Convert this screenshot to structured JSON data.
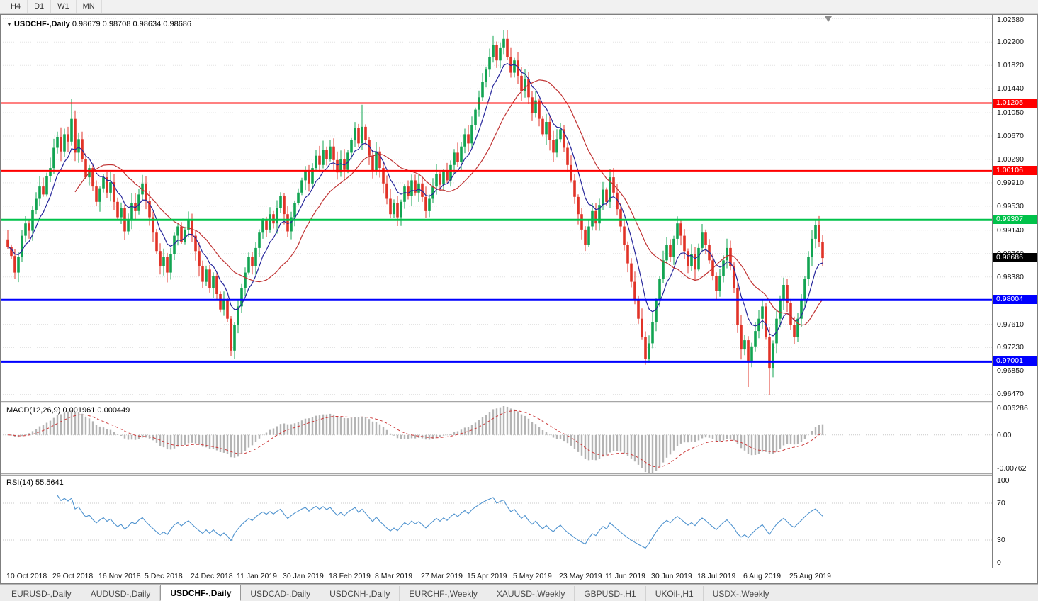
{
  "toolbar": {
    "timeframes": [
      "H4",
      "D1",
      "W1",
      "MN"
    ]
  },
  "chart": {
    "symbol_label": "USDCHF-,Daily",
    "ohlc_label": "0.98679 0.98708 0.98634 0.98686"
  },
  "colors": {
    "up": "#12a452",
    "down": "#e13328",
    "grid": "#e4e4e4",
    "ma_fast": "#26269b",
    "ma_slow": "#c03333",
    "macd_hist": "#b4b4b4",
    "macd_signal": "#cc3a3a",
    "rsi_line": "#4f93cf",
    "level_dotted": "#c9c9c9"
  },
  "chart_data": {
    "type": "candlestick",
    "symbol": "USDCHF-",
    "period": "Daily",
    "last_ohlc": {
      "open": 0.98679,
      "high": 0.98708,
      "low": 0.98634,
      "close": 0.98686
    },
    "y_axis": {
      "min": 0.9636,
      "max": 1.0264,
      "ticks": [
        "1.02580",
        "1.02200",
        "1.01820",
        "1.01440",
        "1.01050",
        "1.00670",
        "1.00290",
        "0.99910",
        "0.99530",
        "0.99140",
        "0.98760",
        "0.98380",
        "0.97610",
        "0.97230",
        "0.96850",
        "0.96470"
      ]
    },
    "x_labels": [
      "10 Oct 2018",
      "29 Oct 2018",
      "16 Nov 2018",
      "5 Dec 2018",
      "24 Dec 2018",
      "11 Jan 2019",
      "30 Jan 2019",
      "18 Feb 2019",
      "8 Mar 2019",
      "27 Mar 2019",
      "15 Apr 2019",
      "5 May 2019",
      "23 May 2019",
      "11 Jun 2019",
      "30 Jun 2019",
      "18 Jul 2019",
      "6 Aug 2019",
      "25 Aug 2019"
    ],
    "x_label_step": 13,
    "closes": [
      0.9887,
      0.9872,
      0.9845,
      0.987,
      0.9905,
      0.9925,
      0.9913,
      0.9946,
      0.9965,
      0.9985,
      0.9972,
      1.0002,
      1.0015,
      1.0048,
      1.0065,
      1.0042,
      1.007,
      1.0058,
      1.0095,
      1.004,
      1.0062,
      1.003,
      1.0,
      1.0015,
      0.9985,
      0.996,
      0.9982,
      1.0,
      0.9975,
      0.9992,
      0.996,
      0.9935,
      0.995,
      0.9912,
      0.993,
      0.9958,
      0.9945,
      0.9972,
      0.999,
      0.9962,
      0.9935,
      0.991,
      0.988,
      0.9855,
      0.987,
      0.9845,
      0.9875,
      0.9905,
      0.992,
      0.9895,
      0.9915,
      0.993,
      0.9905,
      0.988,
      0.9855,
      0.983,
      0.985,
      0.982,
      0.984,
      0.981,
      0.9785,
      0.98,
      0.977,
      0.9718,
      0.976,
      0.979,
      0.982,
      0.9845,
      0.987,
      0.9855,
      0.9885,
      0.991,
      0.993,
      0.9915,
      0.994,
      0.9925,
      0.995,
      0.997,
      0.994,
      0.9912,
      0.9935,
      0.9958,
      0.9975,
      0.9995,
      1.001,
      0.999,
      1.0015,
      1.0035,
      1.002,
      1.0045,
      1.003,
      1.005,
      1.0028,
      1.0008,
      1.003,
      1.0012,
      1.004,
      1.006,
      1.008,
      1.0055,
      1.0082,
      1.006,
      1.0035,
      1.001,
      1.0042,
      1.0015,
      0.999,
      0.9965,
      0.994,
      0.9958,
      0.9935,
      0.996,
      0.9985,
      0.997,
      0.9995,
      0.9975,
      0.999,
      0.9968,
      0.9945,
      0.9965,
      0.9985,
      1.0005,
      0.9988,
      1.001,
      0.9995,
      1.002,
      1.004,
      1.0025,
      1.005,
      1.007,
      1.0055,
      1.0085,
      1.011,
      1.013,
      1.0155,
      1.0175,
      1.0195,
      1.0215,
      1.019,
      1.021,
      1.0225,
      1.0195,
      1.017,
      1.019,
      1.0165,
      1.014,
      1.016,
      1.013,
      1.0105,
      1.0125,
      1.0095,
      1.007,
      1.009,
      1.006,
      1.004,
      1.0062,
      1.0078,
      1.0048,
      1.002,
      0.9995,
      0.9968,
      0.994,
      0.9915,
      0.989,
      0.992,
      0.9945,
      0.9925,
      0.9955,
      0.998,
      0.996,
      1.0,
      0.9975,
      0.9948,
      0.992,
      0.989,
      0.986,
      0.983,
      0.98,
      0.977,
      0.974,
      0.9705,
      0.973,
      0.9765,
      0.98,
      0.9835,
      0.9865,
      0.989,
      0.987,
      0.99,
      0.9925,
      0.9905,
      0.988,
      0.9855,
      0.9875,
      0.985,
      0.9885,
      0.991,
      0.989,
      0.9865,
      0.984,
      0.9815,
      0.984,
      0.9865,
      0.9885,
      0.9855,
      0.982,
      0.976,
      0.972,
      0.9735,
      0.97,
      0.9725,
      0.975,
      0.977,
      0.979,
      0.974,
      0.969,
      0.973,
      0.977,
      0.98,
      0.9825,
      0.9795,
      0.976,
      0.974,
      0.977,
      0.98,
      0.9835,
      0.987,
      0.99,
      0.9922,
      0.9895,
      0.98686
    ],
    "wick_overrides": {
      "18": {
        "h": 1.0128
      },
      "63": {
        "l": 0.9712
      },
      "100": {
        "h": 1.0118
      },
      "140": {
        "h": 1.0226
      },
      "180": {
        "l": 0.9695
      },
      "209": {
        "l": 0.9659
      },
      "215": {
        "l": 0.9646
      },
      "228": {
        "h": 0.993
      }
    },
    "moving_averages": [
      {
        "type": "ema",
        "period": 8,
        "color": "#26269b"
      },
      {
        "type": "sma",
        "period": 20,
        "color": "#c03333"
      }
    ],
    "hlines": [
      {
        "value": 1.01205,
        "label": "1.01205",
        "color": "#ff0000",
        "width": 2
      },
      {
        "value": 1.00106,
        "label": "1.00106",
        "color": "#ff0000",
        "width": 2
      },
      {
        "value": 0.99307,
        "label": "0.99307",
        "color": "#00c24a",
        "width": 3
      },
      {
        "value": 0.98004,
        "label": "0.98004",
        "color": "#0000ff",
        "width": 3
      },
      {
        "value": 0.97001,
        "label": "0.97001",
        "color": "#0000ff",
        "width": 3
      }
    ],
    "current_price": {
      "value": 0.98686,
      "label": "0.98686",
      "bg": "#000000"
    },
    "indicators": {
      "macd": {
        "label": "MACD(12,26,9)",
        "values_label": "0.001961 0.000449",
        "fast": 12,
        "slow": 26,
        "signal": 9,
        "axis": {
          "max": 0.006286,
          "min": -0.00762,
          "ticks": [
            "0.006286",
            "0.00",
            "-0.00762"
          ]
        }
      },
      "rsi": {
        "label": "RSI(14)",
        "value_label": "55.5641",
        "period": 14,
        "axis": {
          "max": 100,
          "min": 0,
          "ticks": [
            "100",
            "70",
            "30",
            "0"
          ],
          "levels": [
            70,
            30
          ]
        }
      }
    }
  },
  "tabs": {
    "active_index": 2,
    "items": [
      "EURUSD-,Daily",
      "AUDUSD-,Daily",
      "USDCHF-,Daily",
      "USDCAD-,Daily",
      "USDCNH-,Daily",
      "EURCHF-,Weekly",
      "XAUUSD-,Weekly",
      "GBPUSD-,H1",
      "UKOil-,H1",
      "USDX-,Weekly"
    ]
  }
}
